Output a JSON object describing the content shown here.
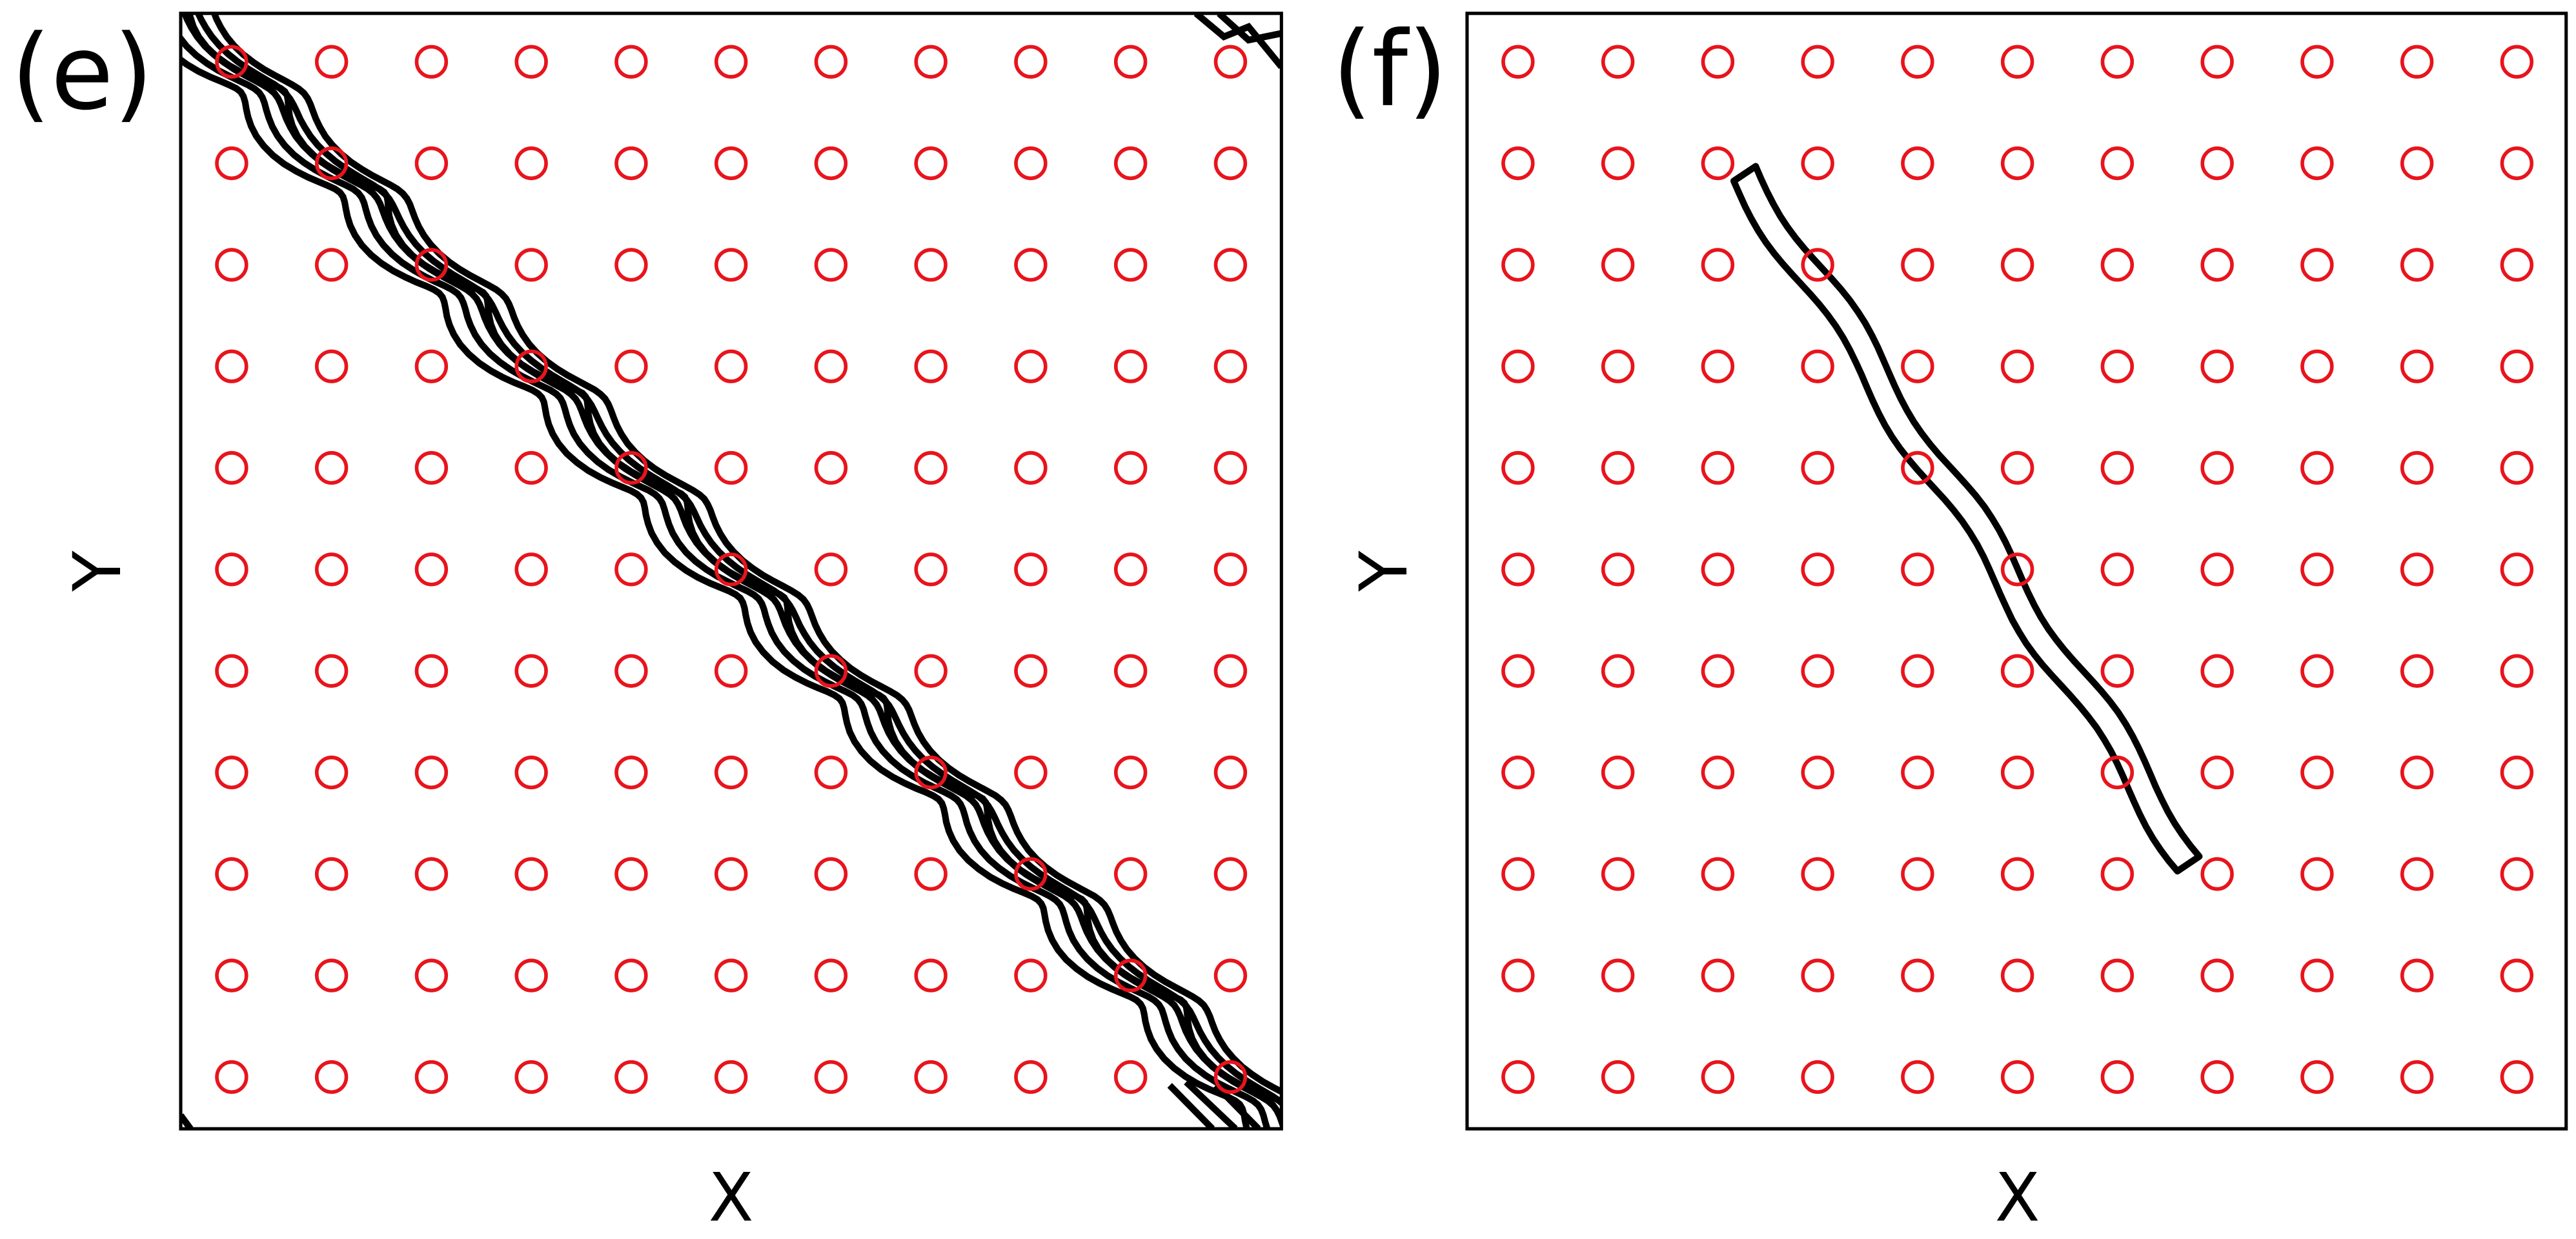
{
  "panels": [
    {
      "label": "(e)",
      "xlabel": "X",
      "ylabel": "Y"
    },
    {
      "label": "(f)",
      "xlabel": "X",
      "ylabel": "Y"
    }
  ]
}
